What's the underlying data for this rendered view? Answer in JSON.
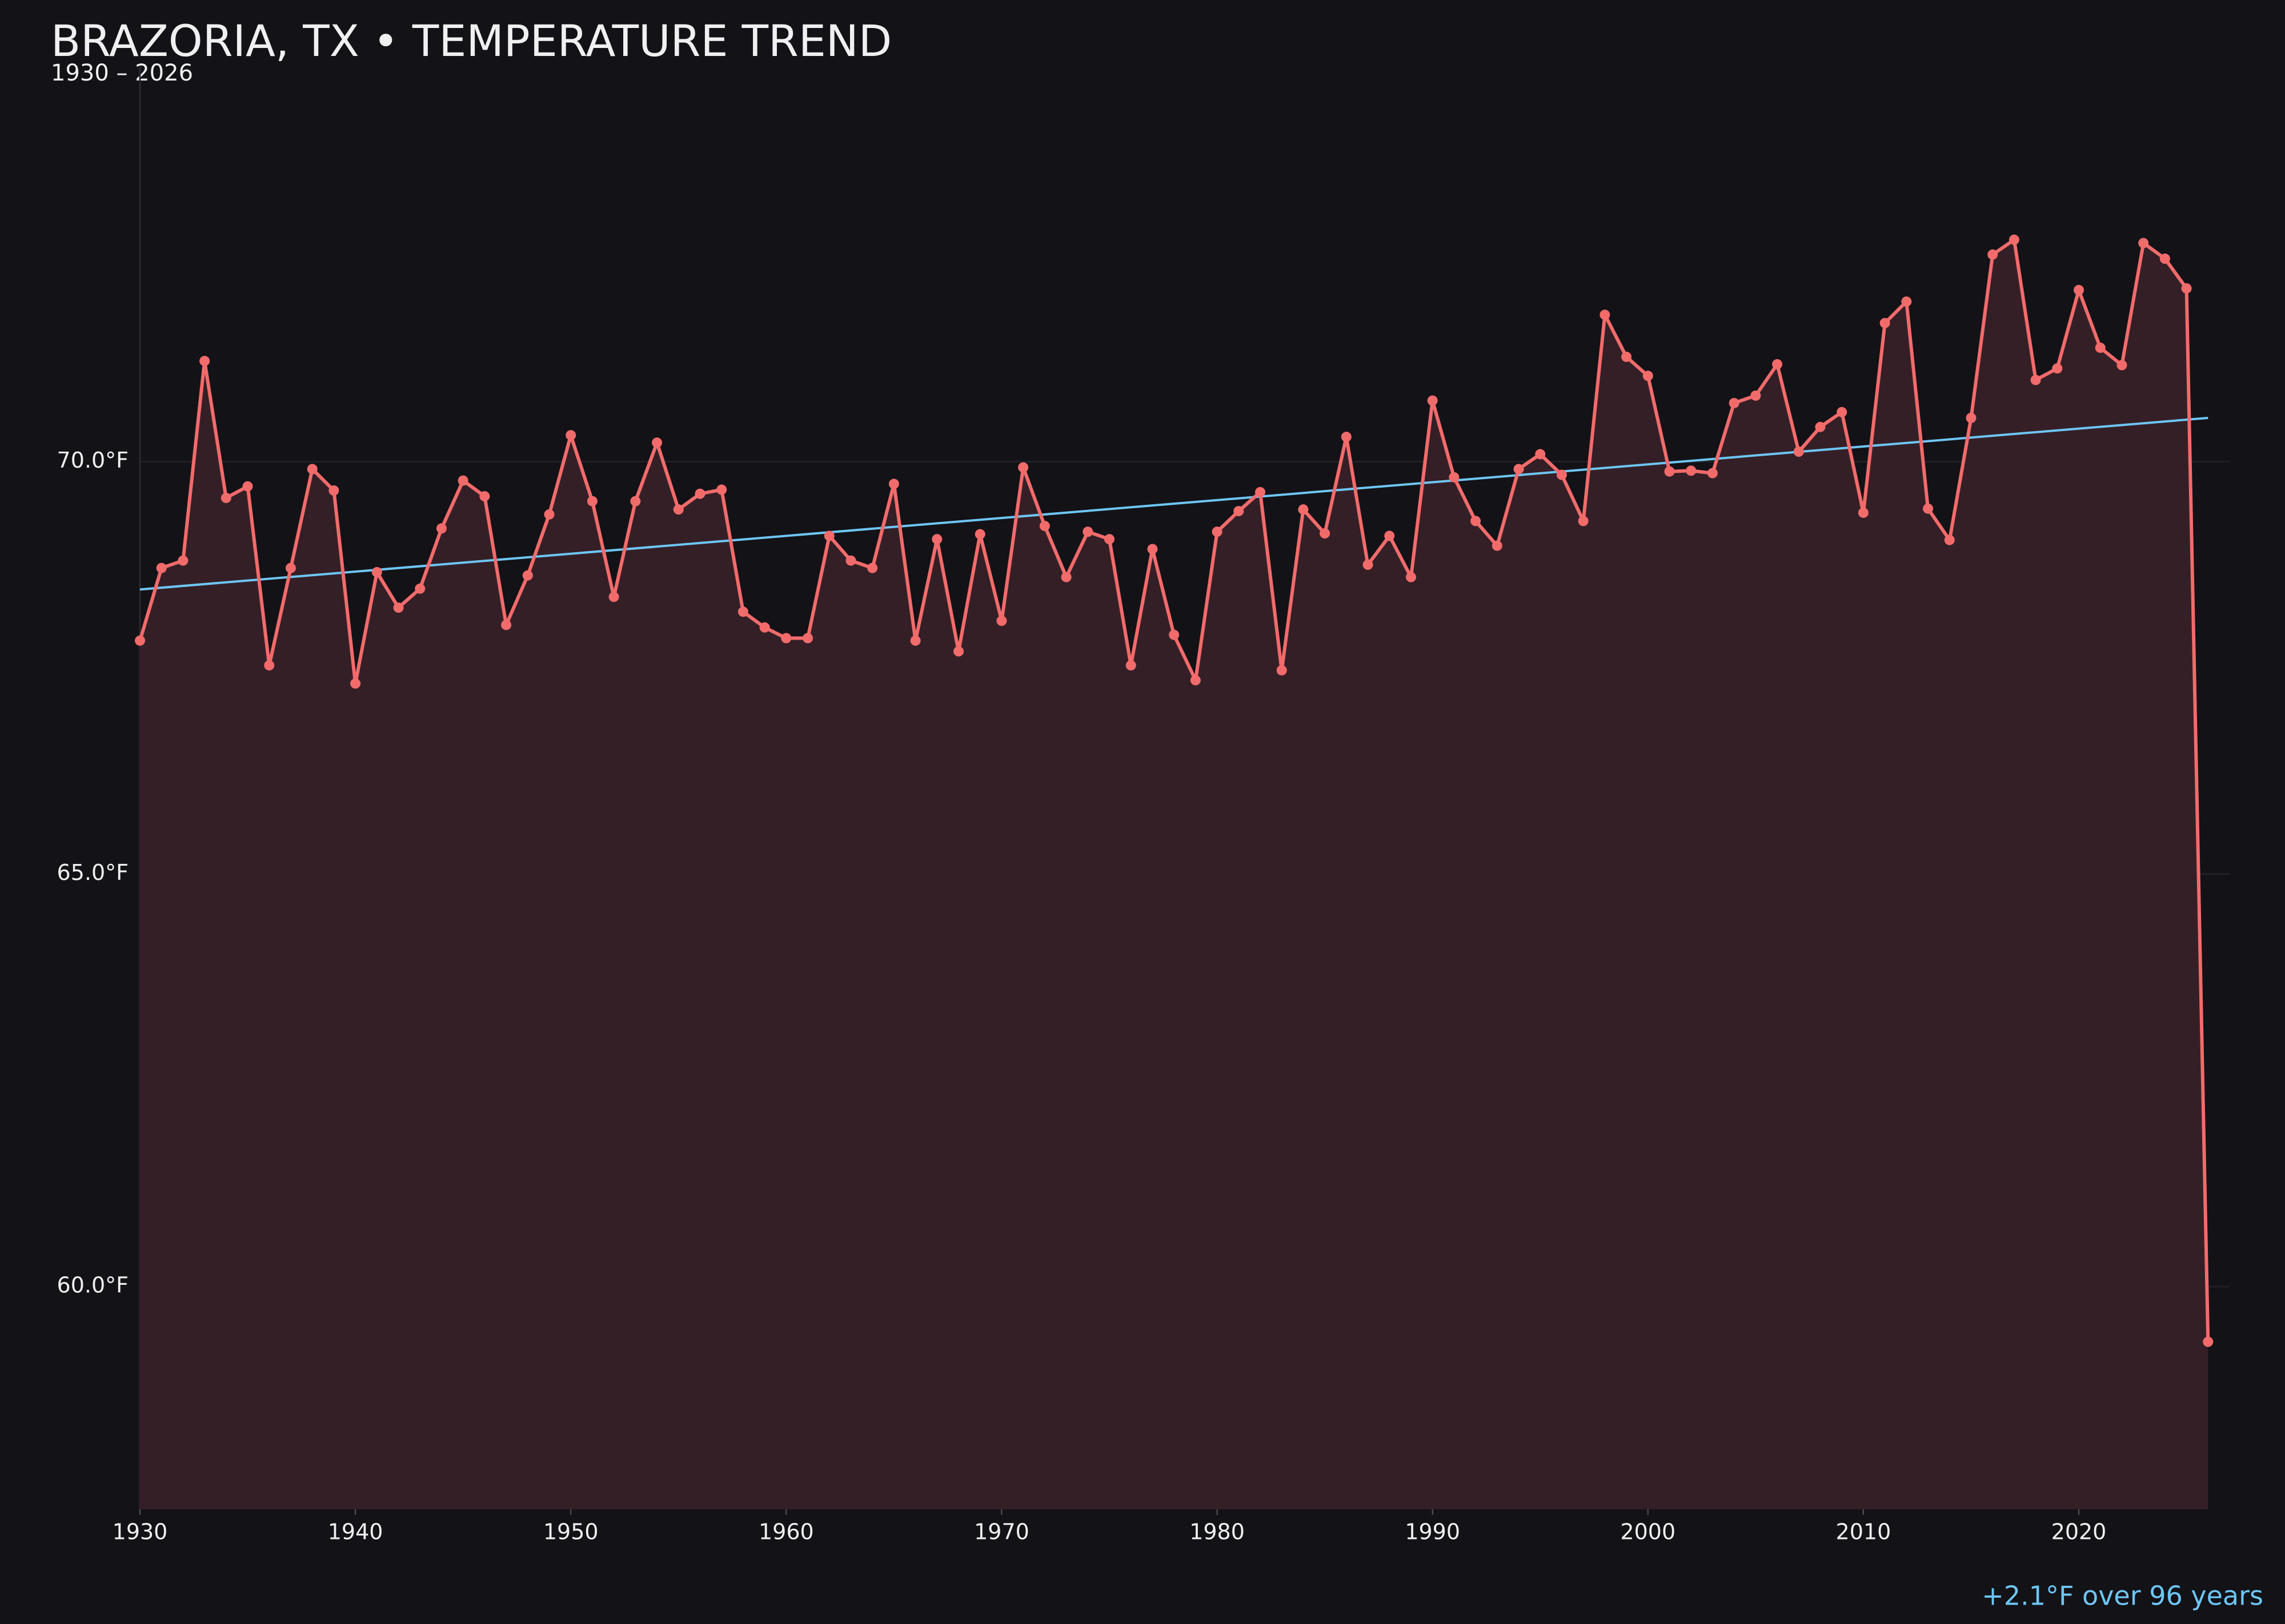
{
  "chart_data": {
    "type": "line",
    "title": "BRAZORIA, TX • TEMPERATURE TREND",
    "subtitle": "1930 – 2026",
    "annotation": "+2.1°F over 96 years",
    "x": [
      1930,
      1931,
      1932,
      1933,
      1934,
      1935,
      1936,
      1937,
      1938,
      1939,
      1940,
      1941,
      1942,
      1943,
      1944,
      1945,
      1946,
      1947,
      1948,
      1949,
      1950,
      1951,
      1952,
      1953,
      1954,
      1955,
      1956,
      1957,
      1958,
      1959,
      1960,
      1961,
      1962,
      1963,
      1964,
      1965,
      1966,
      1967,
      1968,
      1969,
      1970,
      1971,
      1972,
      1973,
      1974,
      1975,
      1976,
      1977,
      1978,
      1979,
      1980,
      1981,
      1982,
      1983,
      1984,
      1985,
      1986,
      1987,
      1988,
      1989,
      1990,
      1991,
      1992,
      1993,
      1994,
      1995,
      1996,
      1997,
      1998,
      1999,
      2000,
      2001,
      2002,
      2003,
      2004,
      2005,
      2006,
      2007,
      2008,
      2009,
      2010,
      2011,
      2012,
      2013,
      2014,
      2015,
      2016,
      2017,
      2018,
      2019,
      2020,
      2021,
      2022,
      2023,
      2024,
      2025,
      2026
    ],
    "series": [
      {
        "color": "#f26b6b",
        "fill": "#351f26",
        "values": [
          67.83,
          68.71,
          68.8,
          71.22,
          69.56,
          69.7,
          67.53,
          68.71,
          69.91,
          69.65,
          67.31,
          68.66,
          68.23,
          68.46,
          69.19,
          69.77,
          69.58,
          68.02,
          68.62,
          69.36,
          70.32,
          69.52,
          68.36,
          69.52,
          70.23,
          69.42,
          69.61,
          69.66,
          68.18,
          67.99,
          67.86,
          67.86,
          69.1,
          68.8,
          68.71,
          69.73,
          67.83,
          69.06,
          67.7,
          69.12,
          68.07,
          69.93,
          69.22,
          68.6,
          69.15,
          69.06,
          67.53,
          68.94,
          67.9,
          67.35,
          69.15,
          69.4,
          69.63,
          67.47,
          69.42,
          69.13,
          70.3,
          68.75,
          69.1,
          68.6,
          70.74,
          69.81,
          69.28,
          68.98,
          69.91,
          70.09,
          69.84,
          69.28,
          71.78,
          71.27,
          71.04,
          69.88,
          69.89,
          69.86,
          70.71,
          70.8,
          71.18,
          70.12,
          70.42,
          70.6,
          69.38,
          71.68,
          71.94,
          69.43,
          69.05,
          70.53,
          72.51,
          72.69,
          70.99,
          71.13,
          72.08,
          71.38,
          71.17,
          72.65,
          72.46,
          72.1,
          59.33
        ]
      }
    ],
    "trend": {
      "color": "#6ec6f5",
      "x": [
        1930,
        2026
      ],
      "values": [
        68.45,
        70.53
      ]
    },
    "xlim": [
      1930,
      2027
    ],
    "ylim": [
      57.3,
      74.8
    ],
    "xticks": [
      1930,
      1940,
      1950,
      1960,
      1970,
      1980,
      1990,
      2000,
      2010,
      2020
    ],
    "yticks": [
      {
        "value": 60,
        "label": "60.0°F"
      },
      {
        "value": 65,
        "label": "65.0°F"
      },
      {
        "value": 70,
        "label": "70.0°F"
      }
    ],
    "grid": true
  }
}
